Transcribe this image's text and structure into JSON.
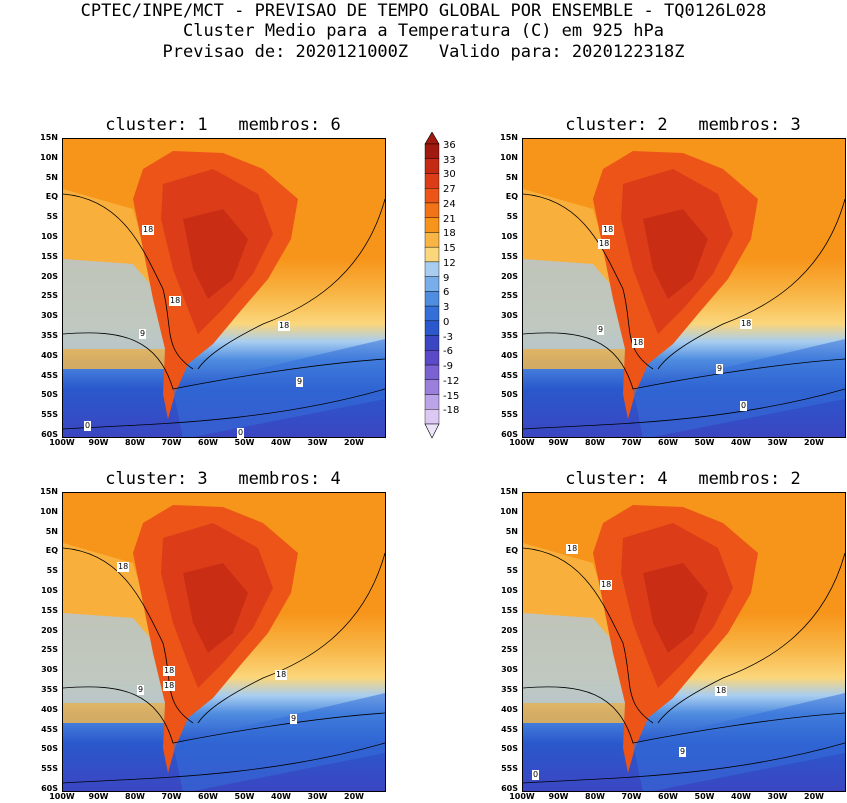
{
  "header": {
    "line1": "CPTEC/INPE/MCT - PREVISAO DE TEMPO GLOBAL POR ENSEMBLE - TQ0126L028",
    "line2": "Cluster Medio para a Temperatura (C) em 925 hPa",
    "line3": "Previsao de: 2020121000Z   Valido para: 2020122318Z"
  },
  "axes": {
    "lat_labels": [
      "15N",
      "10N",
      "5N",
      "EQ",
      "5S",
      "10S",
      "15S",
      "20S",
      "25S",
      "30S",
      "35S",
      "40S",
      "45S",
      "50S",
      "55S",
      "60S"
    ],
    "lon_labels": [
      "100W",
      "90W",
      "80W",
      "70W",
      "60W",
      "50W",
      "40W",
      "30W",
      "20W"
    ]
  },
  "colorbar": {
    "labels": [
      "36",
      "33",
      "30",
      "27",
      "24",
      "21",
      "18",
      "15",
      "12",
      "9",
      "6",
      "3",
      "0",
      "-3",
      "-6",
      "-9",
      "-12",
      "-15",
      "-18"
    ],
    "colors": [
      "#a01a10",
      "#c42a14",
      "#dc3c18",
      "#ec5418",
      "#f37418",
      "#f7941a",
      "#f8b545",
      "#fbd67b",
      "#a8cdf0",
      "#78aeea",
      "#4f8de0",
      "#3470d8",
      "#2a58cc",
      "#3b46c2",
      "#5a4ac8",
      "#7a62d2",
      "#9a80dc",
      "#bca4e8",
      "#ddc8f4"
    ]
  },
  "panels": [
    {
      "title": "cluster: 1   membros: 6",
      "contour_labels": [
        "18",
        "18",
        "18",
        "9",
        "9",
        "0",
        "0"
      ]
    },
    {
      "title": "cluster: 2   membros: 3",
      "contour_labels": [
        "18",
        "18",
        "18",
        "18",
        "9",
        "9",
        "0"
      ]
    },
    {
      "title": "cluster: 3   membros: 4",
      "contour_labels": [
        "18",
        "18",
        "18",
        "18",
        "9",
        "9"
      ]
    },
    {
      "title": "cluster: 4   membros: 2",
      "contour_labels": [
        "18",
        "18",
        "18",
        "9",
        "0"
      ]
    }
  ]
}
